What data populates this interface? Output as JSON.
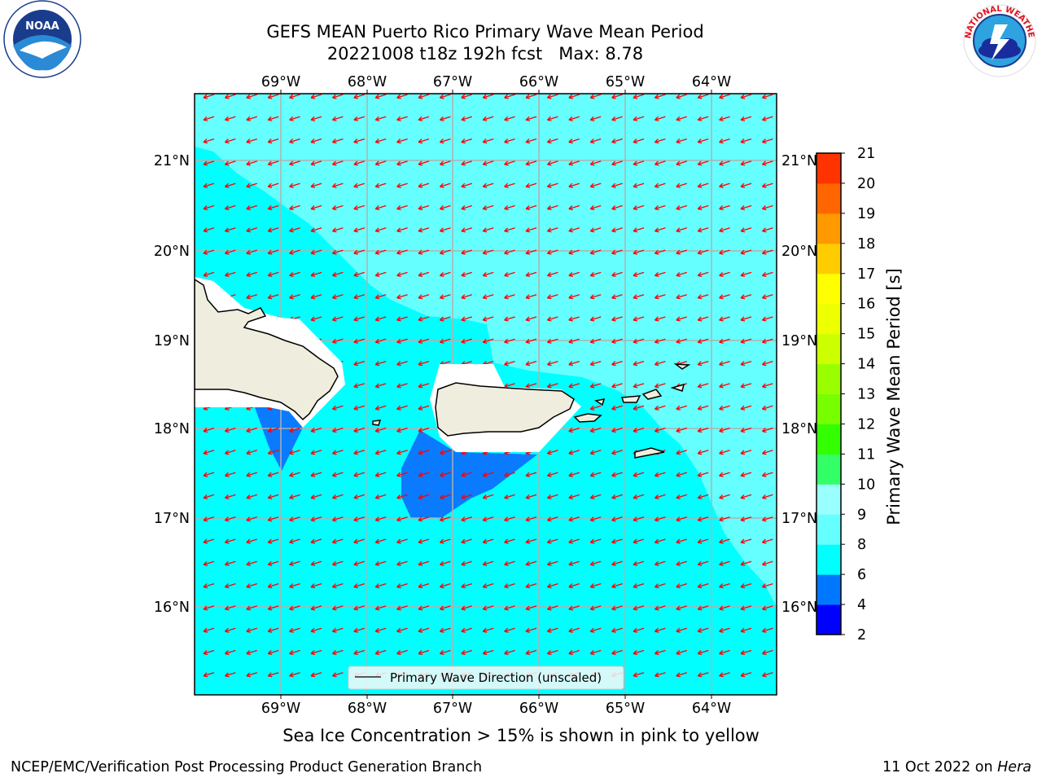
{
  "header": {
    "title_line1": "GEFS MEAN Puerto Rico Primary Wave Mean Period",
    "title_line2": "20221008 t18z 192h fcst   Max: 8.78"
  },
  "map": {
    "lon_ticks": [
      "69°W",
      "68°W",
      "67°W",
      "66°W",
      "65°W",
      "64°W"
    ],
    "lat_ticks": [
      "21°N",
      "20°N",
      "19°N",
      "18°N",
      "17°N",
      "16°N"
    ],
    "legend_label": "Primary Wave Direction (unscaled)",
    "arrow_color": "#ff0000",
    "land_color": "#efeddd"
  },
  "colorbar": {
    "label": "Primary Wave Mean Period [s]",
    "ticks": [
      "2",
      "4",
      "6",
      "8",
      "9",
      "10",
      "11",
      "12",
      "13",
      "14",
      "15",
      "16",
      "17",
      "18",
      "19",
      "20",
      "21"
    ],
    "colors": [
      "#0000ff",
      "#0077ff",
      "#00ffff",
      "#66ffff",
      "#99ffff",
      "#33ff66",
      "#33ff00",
      "#77ff00",
      "#99ff00",
      "#ccff00",
      "#eeff00",
      "#ffff00",
      "#ffcc00",
      "#ff9900",
      "#ff6600",
      "#ff3300",
      "#ff0000"
    ]
  },
  "note": "Sea Ice Concentration > 15% is shown in pink to yellow",
  "footer": {
    "left": "NCEP/EMC/Verification Post Processing Product Generation Branch",
    "right_date": "11 Oct 2022 on ",
    "right_host": "Hera"
  },
  "logos": {
    "noaa": "NOAA",
    "nws": "NATIONAL WEATHER SERVICE"
  }
}
